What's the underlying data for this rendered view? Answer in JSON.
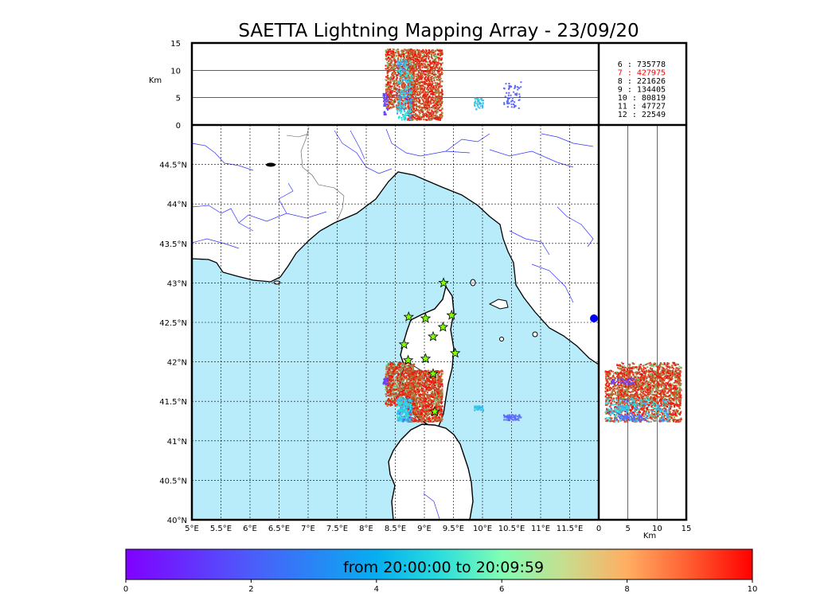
{
  "chart_data": {
    "type": "scatter",
    "title": "SAETTA Lightning Mapping Array - 23/09/20",
    "map": {
      "xlim": [
        5,
        12
      ],
      "ylim": [
        40,
        45
      ],
      "x_ticks": [
        "5°E",
        "5.5°E",
        "6°E",
        "6.5°E",
        "7°E",
        "7.5°E",
        "8°E",
        "8.5°E",
        "9°E",
        "9.5°E",
        "10°E",
        "10.5°E",
        "11°E",
        "11.5°E"
      ],
      "x_tick_values": [
        5,
        5.5,
        6,
        6.5,
        7,
        7.5,
        8,
        8.5,
        9,
        9.5,
        10,
        10.5,
        11,
        11.5
      ],
      "y_ticks": [
        "40°N",
        "40.5°N",
        "41°N",
        "41.5°N",
        "42°N",
        "42.5°N",
        "43°N",
        "43.5°N",
        "44°N",
        "44.5°N"
      ],
      "y_tick_values": [
        40,
        40.5,
        41,
        41.5,
        42,
        42.5,
        43,
        43.5,
        44,
        44.5
      ],
      "grid": true,
      "sea_color": "#b8ecfa",
      "land_color": "#ffffff",
      "river_color": "#3232ff",
      "stations": [
        [
          9.33,
          43.0
        ],
        [
          8.73,
          42.57
        ],
        [
          9.02,
          42.55
        ],
        [
          9.47,
          42.59
        ],
        [
          9.15,
          42.32
        ],
        [
          9.32,
          42.44
        ],
        [
          8.65,
          42.22
        ],
        [
          9.53,
          42.11
        ],
        [
          9.02,
          42.04
        ],
        [
          8.72,
          42.02
        ],
        [
          9.15,
          41.85
        ],
        [
          9.18,
          41.37
        ]
      ],
      "station_color": "#7fff00"
    },
    "altitude_panel": {
      "ylabel": "Km",
      "y_ticks": [
        "0",
        "5",
        "10",
        "15"
      ],
      "y_tick_values": [
        0,
        5,
        10,
        15
      ],
      "ylim": [
        0,
        15
      ]
    },
    "side_panel": {
      "xlabel": "Km",
      "x_ticks": [
        "0",
        "5",
        "10",
        "15"
      ],
      "x_tick_values": [
        0,
        5,
        10,
        15
      ],
      "xlim": [
        0,
        15
      ]
    },
    "station_counts": [
      {
        "id": "6",
        "count": "735778",
        "color": "#000000"
      },
      {
        "id": "7",
        "count": "427975",
        "color": "#ff0000"
      },
      {
        "id": "8",
        "count": "221626",
        "color": "#000000"
      },
      {
        "id": "9",
        "count": "134405",
        "color": "#000000"
      },
      {
        "id": "10",
        "count": "80819",
        "color": "#000000"
      },
      {
        "id": "11",
        "count": "47727",
        "color": "#000000"
      },
      {
        "id": "12",
        "count": "22549",
        "color": "#000000"
      }
    ],
    "colorbar": {
      "label": "from 20:00:00 to 20:09:59",
      "ticks": [
        "0",
        "2",
        "4",
        "6",
        "8",
        "10"
      ],
      "tick_values": [
        0,
        2,
        4,
        6,
        8,
        10
      ],
      "range": [
        0,
        10
      ],
      "colormap": "rainbow"
    },
    "source_clusters": [
      {
        "x": [
          8.32,
          8.82
        ],
        "y": [
          41.45,
          42.0
        ],
        "z": [
          3,
          14
        ],
        "t": [
          6,
          10
        ]
      },
      {
        "x": [
          8.7,
          9.3
        ],
        "y": [
          41.25,
          41.9
        ],
        "z": [
          1,
          14
        ],
        "t": [
          6.5,
          10
        ]
      },
      {
        "x": [
          8.52,
          8.78
        ],
        "y": [
          41.25,
          41.55
        ],
        "z": [
          1,
          12
        ],
        "t": [
          0,
          4
        ]
      },
      {
        "x": [
          9.85,
          10.0
        ],
        "y": [
          41.39,
          41.45
        ],
        "z": [
          3,
          5
        ],
        "t": [
          2,
          3
        ]
      },
      {
        "x": [
          10.35,
          10.65
        ],
        "y": [
          41.27,
          41.34
        ],
        "z": [
          3,
          8
        ],
        "t": [
          1,
          1.5
        ]
      },
      {
        "x": [
          8.28,
          8.36
        ],
        "y": [
          41.72,
          41.8
        ],
        "z": [
          2,
          6
        ],
        "t": [
          0.5,
          1
        ]
      }
    ]
  }
}
